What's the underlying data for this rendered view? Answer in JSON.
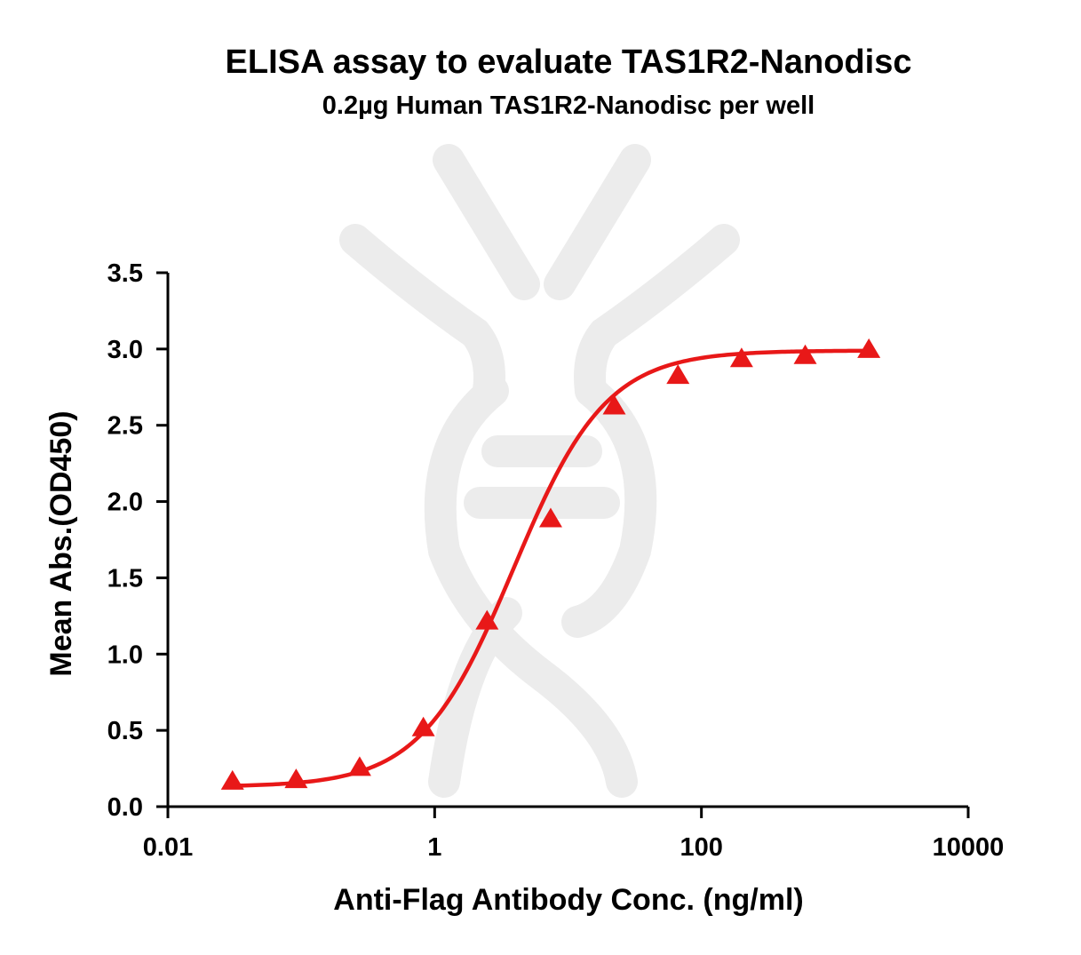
{
  "chart_data": {
    "type": "scatter",
    "title": "ELISA assay to evaluate TAS1R2-Nanodisc",
    "subtitle": "0.2µg Human TAS1R2-Nanodisc per well",
    "xlabel": "Anti-Flag Antibody Conc. (ng/ml)",
    "ylabel": "Mean Abs.(OD450)",
    "x_scale": "log",
    "xlim": [
      0.01,
      10000
    ],
    "ylim": [
      0,
      3.5
    ],
    "x_ticks": [
      0.01,
      1,
      100,
      10000
    ],
    "x_tick_labels": [
      "0.01",
      "1",
      "100",
      "10000"
    ],
    "y_ticks": [
      0,
      0.5,
      1,
      1.5,
      2,
      2.5,
      3,
      3.5
    ],
    "y_tick_labels": [
      "0.0",
      "0.5",
      "1.0",
      "1.5",
      "2.0",
      "2.5",
      "3.0",
      "3.5"
    ],
    "series": [
      {
        "color": "#e81818",
        "marker": "triangle",
        "fit": "4PL",
        "x": [
          0.0305,
          0.0915,
          0.274,
          0.823,
          2.47,
          7.41,
          22.2,
          66.7,
          200,
          600,
          1800
        ],
        "y": [
          0.16,
          0.17,
          0.25,
          0.51,
          1.21,
          1.88,
          2.62,
          2.82,
          2.93,
          2.95,
          2.99
        ]
      }
    ],
    "grid": false,
    "legend": "none"
  }
}
